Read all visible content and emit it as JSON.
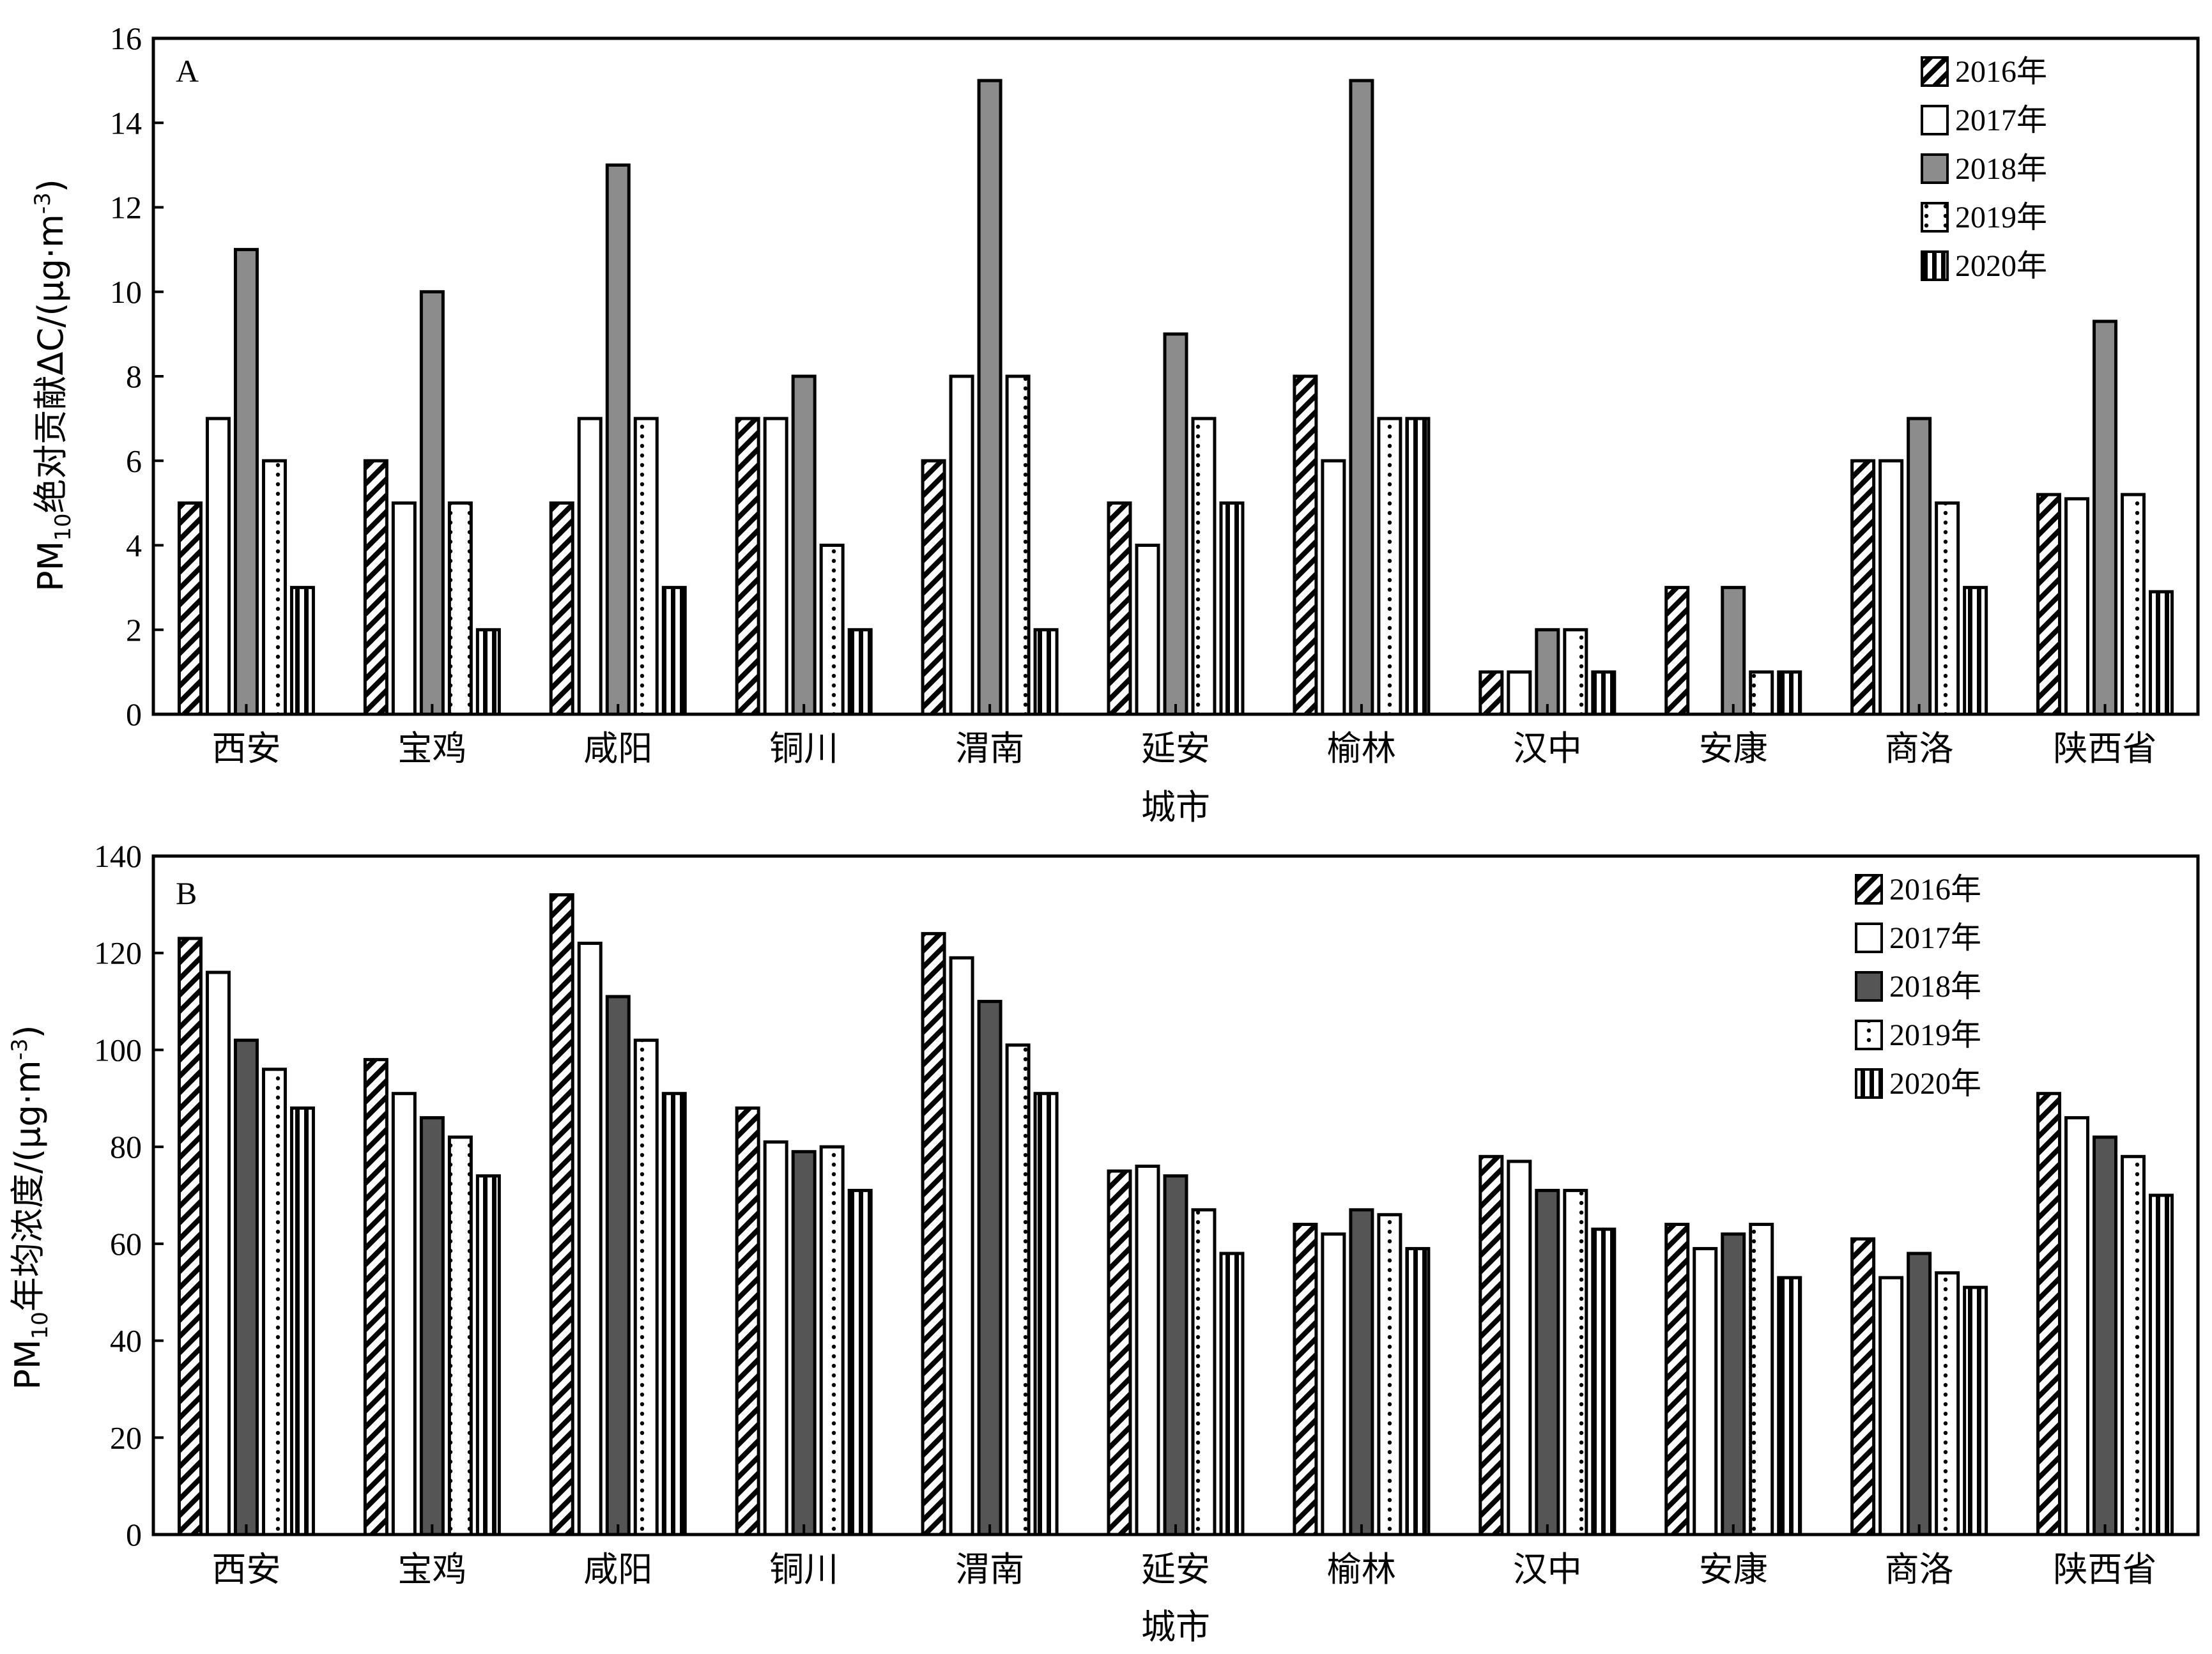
{
  "chart_data": [
    {
      "type": "bar",
      "panel_label": "A",
      "ylabel_prefix": "PM",
      "ylabel_sub": "10",
      "ylabel_rest": "绝对贡献ΔC/(μg·m",
      "ylabel_sup": "-3",
      "ylabel_close": ")",
      "xlabel": "城市",
      "ylim": [
        0,
        16
      ],
      "yticks": [
        "0",
        "2",
        "4",
        "6",
        "8",
        "10",
        "12",
        "14",
        "16"
      ],
      "legend_position": "top-right",
      "categories": [
        "西安",
        "宝鸡",
        "咸阳",
        "铜川",
        "渭南",
        "延安",
        "榆林",
        "汉中",
        "安康",
        "商洛",
        "陕西省"
      ],
      "series": [
        {
          "name": "2016年",
          "pattern": "hatch",
          "values": [
            5,
            6,
            5,
            7,
            6,
            5,
            8,
            1,
            3,
            6,
            5.2
          ]
        },
        {
          "name": "2017年",
          "pattern": "white",
          "values": [
            7,
            5,
            7,
            7,
            8,
            4,
            6,
            1,
            0,
            6,
            5.1
          ]
        },
        {
          "name": "2018年",
          "pattern": "gray",
          "values": [
            11,
            10,
            13,
            8,
            15,
            9,
            15,
            2,
            3,
            7,
            9.3
          ]
        },
        {
          "name": "2019年",
          "pattern": "dots",
          "values": [
            6,
            5,
            7,
            4,
            8,
            7,
            7,
            2,
            1,
            5,
            5.2
          ]
        },
        {
          "name": "2020年",
          "pattern": "vlines",
          "values": [
            3,
            2,
            3,
            2,
            2,
            5,
            7,
            1,
            1,
            3,
            2.9
          ]
        }
      ]
    },
    {
      "type": "bar",
      "panel_label": "B",
      "ylabel_prefix": "PM",
      "ylabel_sub": "10",
      "ylabel_rest": "年均浓度/(μg·m",
      "ylabel_sup": "-3",
      "ylabel_close": ")",
      "xlabel": "城市",
      "ylim": [
        0,
        140
      ],
      "yticks": [
        "0",
        "20",
        "40",
        "60",
        "80",
        "100",
        "120",
        "140"
      ],
      "legend_position": "top-right",
      "categories": [
        "西安",
        "宝鸡",
        "咸阳",
        "铜川",
        "渭南",
        "延安",
        "榆林",
        "汉中",
        "安康",
        "商洛",
        "陕西省"
      ],
      "series": [
        {
          "name": "2016年",
          "pattern": "hatch",
          "values": [
            123,
            98,
            132,
            88,
            124,
            75,
            64,
            78,
            64,
            61,
            91
          ]
        },
        {
          "name": "2017年",
          "pattern": "white",
          "values": [
            116,
            91,
            122,
            81,
            119,
            76,
            62,
            77,
            59,
            53,
            86
          ]
        },
        {
          "name": "2018年",
          "pattern": "dark",
          "values": [
            102,
            86,
            111,
            79,
            110,
            74,
            67,
            71,
            62,
            58,
            82
          ]
        },
        {
          "name": "2019年",
          "pattern": "dots",
          "values": [
            96,
            82,
            102,
            80,
            101,
            67,
            66,
            71,
            64,
            54,
            78
          ]
        },
        {
          "name": "2020年",
          "pattern": "vlines",
          "values": [
            88,
            74,
            91,
            71,
            91,
            58,
            59,
            63,
            53,
            51,
            70
          ]
        }
      ]
    }
  ]
}
